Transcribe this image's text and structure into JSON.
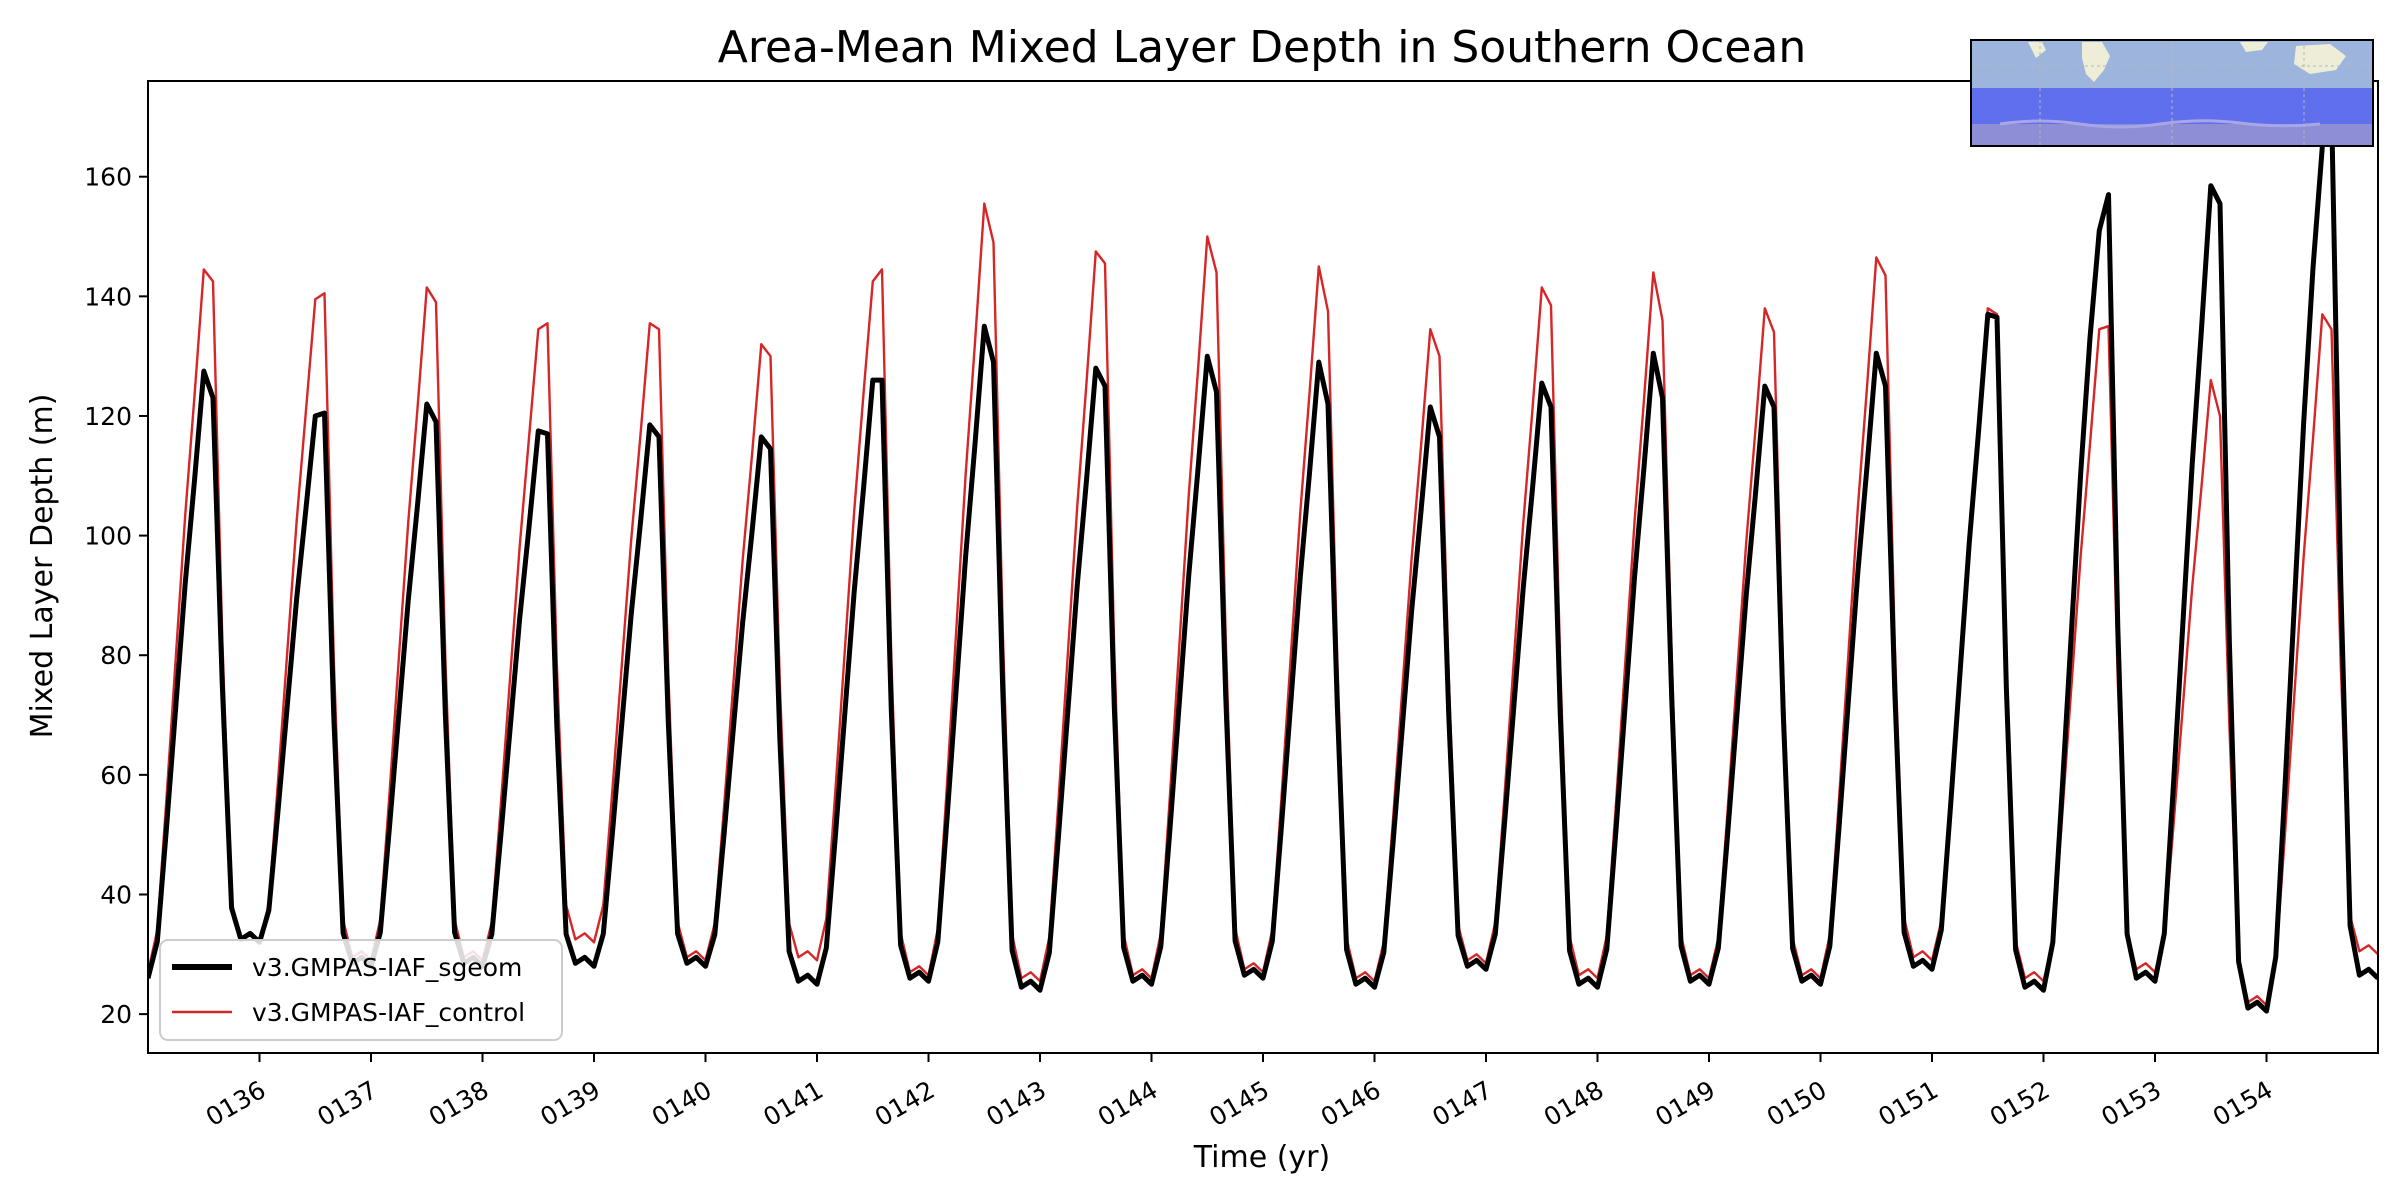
{
  "chart_data": {
    "type": "line",
    "title": "Area-Mean Mixed Layer Depth in Southern Ocean",
    "xlabel": "Time (yr)",
    "ylabel": "Mixed Layer Depth (m)",
    "xlim": [
      135.0,
      155.0
    ],
    "ylim": [
      13.5,
      176
    ],
    "x_ticks": [
      {
        "value": 136,
        "label": "0136"
      },
      {
        "value": 137,
        "label": "0137"
      },
      {
        "value": 138,
        "label": "0138"
      },
      {
        "value": 139,
        "label": "0139"
      },
      {
        "value": 140,
        "label": "0140"
      },
      {
        "value": 141,
        "label": "0141"
      },
      {
        "value": 142,
        "label": "0142"
      },
      {
        "value": 143,
        "label": "0143"
      },
      {
        "value": 144,
        "label": "0144"
      },
      {
        "value": 145,
        "label": "0145"
      },
      {
        "value": 146,
        "label": "0146"
      },
      {
        "value": 147,
        "label": "0147"
      },
      {
        "value": 148,
        "label": "0148"
      },
      {
        "value": 149,
        "label": "0149"
      },
      {
        "value": 150,
        "label": "0150"
      },
      {
        "value": 151,
        "label": "0151"
      },
      {
        "value": 152,
        "label": "0152"
      },
      {
        "value": 153,
        "label": "0153"
      },
      {
        "value": 154,
        "label": "0154"
      }
    ],
    "y_ticks": [
      20,
      40,
      60,
      80,
      100,
      120,
      140,
      160
    ],
    "grid": false,
    "legend_position": "lower-left",
    "inset_map": "Southern Ocean region map (top-right)",
    "series": [
      {
        "name": "v3.GMPAS-IAF_sgeom",
        "color": "#000000",
        "style": "thick",
        "minima": [
          26,
          32,
          28,
          28,
          28,
          28,
          25,
          25.5,
          24,
          25,
          26,
          24.5,
          27.5,
          24.5,
          25,
          25,
          27.5,
          24,
          25.5,
          20.5,
          26
        ],
        "peaks": [
          [
            127.5,
            123
          ],
          [
            120,
            120.5
          ],
          [
            122,
            119
          ],
          [
            117.5,
            117
          ],
          [
            118.5,
            116.5
          ],
          [
            116.5,
            114.5
          ],
          [
            126,
            126
          ],
          [
            135,
            129
          ],
          [
            128,
            125
          ],
          [
            130,
            124
          ],
          [
            129,
            122
          ],
          [
            121.5,
            116.5
          ],
          [
            125.5,
            121.5
          ],
          [
            130.5,
            123
          ],
          [
            125,
            121.5
          ],
          [
            130.5,
            125
          ],
          [
            137,
            136.5
          ],
          [
            151,
            157
          ],
          [
            158.5,
            155.5
          ],
          [
            165,
            172
          ]
        ]
      },
      {
        "name": "v3.GMPAS-IAF_control",
        "color": "#d62728",
        "style": "thin",
        "minima": [
          27,
          32,
          29,
          29,
          32,
          29,
          29,
          26.5,
          25.5,
          26,
          27,
          25.5,
          28.5,
          26,
          26,
          26,
          29,
          25.5,
          27,
          21.5,
          30
        ],
        "peaks": [
          [
            144.5,
            142.5
          ],
          [
            139.5,
            140.5
          ],
          [
            141.5,
            139
          ],
          [
            134.5,
            135.5
          ],
          [
            135.5,
            134.5
          ],
          [
            132,
            130
          ],
          [
            142.5,
            144.5
          ],
          [
            155.5,
            149
          ],
          [
            147.5,
            145.5
          ],
          [
            150,
            144
          ],
          [
            145,
            137.5
          ],
          [
            134.5,
            130
          ],
          [
            141.5,
            138.5
          ],
          [
            144,
            136
          ],
          [
            138,
            134
          ],
          [
            146.5,
            143.5
          ],
          [
            138,
            137
          ],
          [
            134.5,
            135
          ],
          [
            126,
            120
          ],
          [
            137,
            134.5
          ]
        ]
      }
    ]
  }
}
